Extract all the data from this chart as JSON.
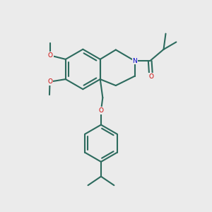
{
  "bg_color": "#ebebeb",
  "bond_color": "#2d6b5e",
  "N_color": "#0000cc",
  "O_color": "#cc0000",
  "line_width": 1.5,
  "figsize": [
    3.0,
    3.0
  ],
  "dpi": 100,
  "xlim": [
    0,
    10
  ],
  "ylim": [
    0,
    10
  ]
}
